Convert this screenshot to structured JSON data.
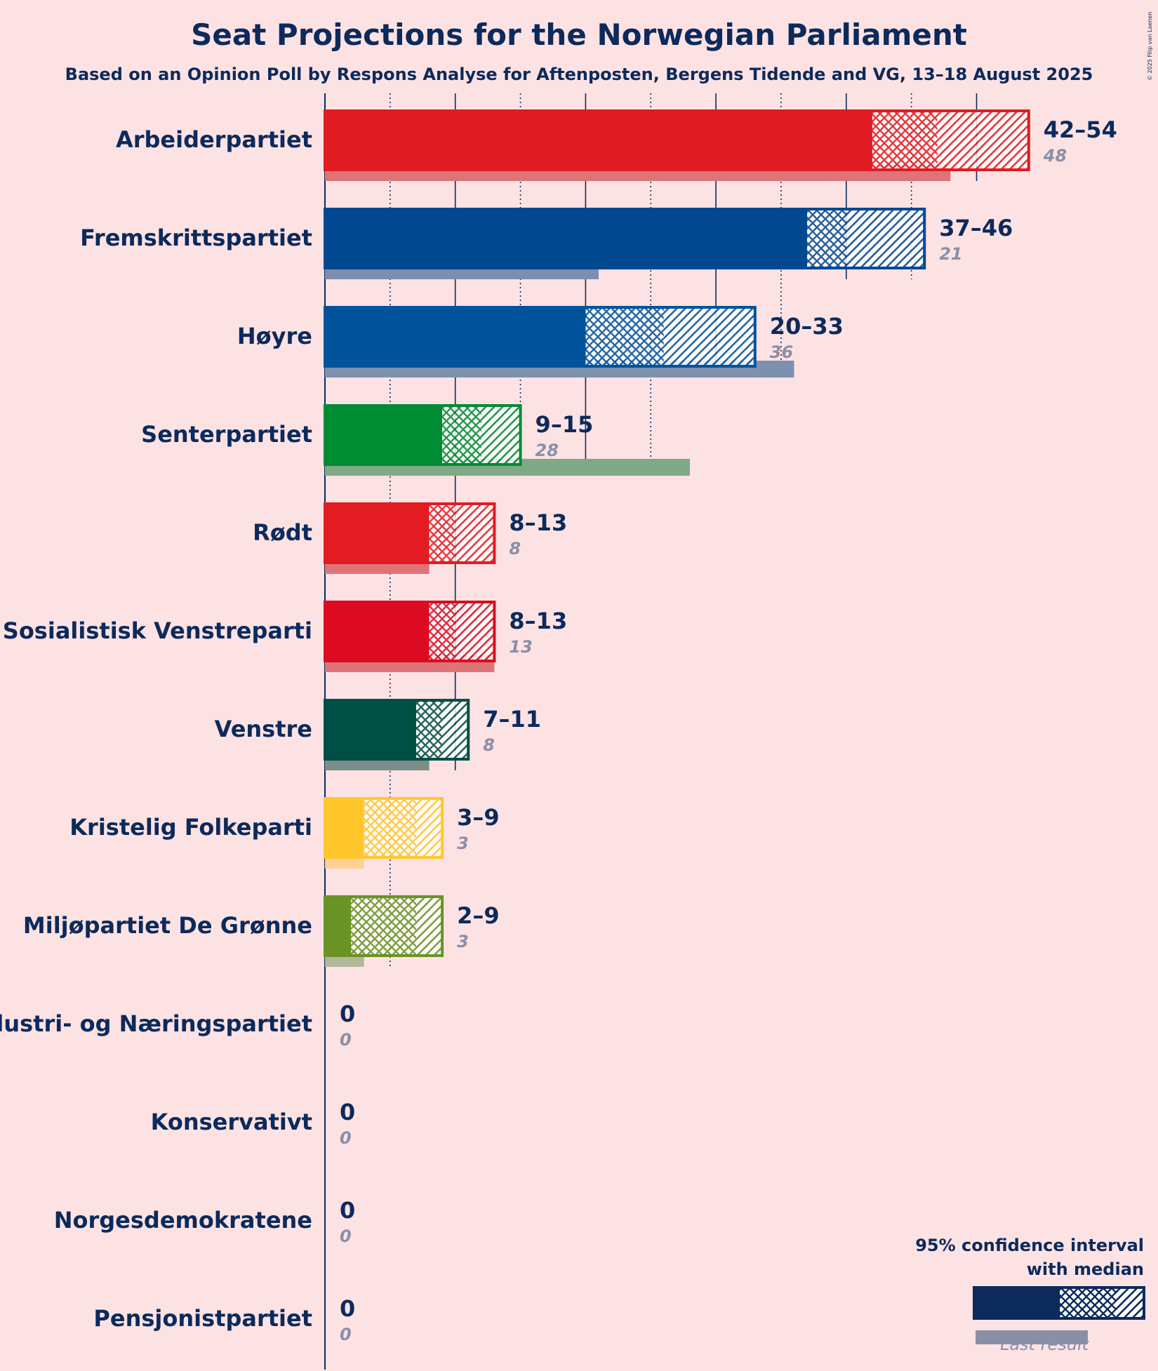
{
  "title": "Seat Projections for the Norwegian Parliament",
  "subtitle": "Based on an Opinion Poll by Respons Analyse for Aftenposten, Bergens Tidende and VG, 13–18 August 2025",
  "copyright": "© 2025 Filip van Laenen",
  "legend": {
    "ci_label_line1": "95% confidence interval",
    "ci_label_line2": "with median",
    "last_result_label": "Last result",
    "color": "#0c2a5b"
  },
  "chart_data": {
    "type": "bar",
    "orientation": "horizontal",
    "title": "Seat Projections for the Norwegian Parliament",
    "xlim": [
      0,
      60
    ],
    "gridlines_solid": [
      0,
      10,
      20,
      30,
      40,
      50
    ],
    "gridlines_dotted": [
      5,
      15,
      25,
      35,
      45
    ],
    "parties": [
      {
        "name": "Arbeiderpartiet",
        "low": 42,
        "median": 47,
        "high": 54,
        "range_label": "42–54",
        "last": 48,
        "last_label": "48",
        "color": "#e01b22",
        "last_color": "#de7378"
      },
      {
        "name": "Fremskrittspartiet",
        "low": 37,
        "median": 40,
        "high": 46,
        "range_label": "37–46",
        "last": 21,
        "last_label": "21",
        "color": "#024891",
        "last_color": "#7d8eb0"
      },
      {
        "name": "Høyre",
        "low": 20,
        "median": 26,
        "high": 33,
        "range_label": "20–33",
        "last": 36,
        "last_label": "36",
        "color": "#00539b",
        "last_color": "#7d91ae"
      },
      {
        "name": "Senterpartiet",
        "low": 9,
        "median": 12,
        "high": 15,
        "range_label": "9–15",
        "last": 28,
        "last_label": "28",
        "color": "#008c33",
        "last_color": "#80a987"
      },
      {
        "name": "Rødt",
        "low": 8,
        "median": 10,
        "high": 13,
        "range_label": "8–13",
        "last": 8,
        "last_label": "8",
        "color": "#e31b23",
        "last_color": "#de7378"
      },
      {
        "name": "Sosialistisk Venstreparti",
        "low": 8,
        "median": 10,
        "high": 13,
        "range_label": "8–13",
        "last": 13,
        "last_label": "13",
        "color": "#dd0b22",
        "last_color": "#de7378"
      },
      {
        "name": "Venstre",
        "low": 7,
        "median": 9,
        "high": 11,
        "range_label": "7–11",
        "last": 8,
        "last_label": "8",
        "color": "#004f45",
        "last_color": "#7a8f8a"
      },
      {
        "name": "Kristelig Folkeparti",
        "low": 3,
        "median": 7,
        "high": 9,
        "range_label": "3–9",
        "last": 3,
        "last_label": "3",
        "color": "#ffc72c",
        "last_color": "#fcd193"
      },
      {
        "name": "Miljøpartiet De Grønne",
        "low": 2,
        "median": 7,
        "high": 9,
        "range_label": "2–9",
        "last": 3,
        "last_label": "3",
        "color": "#6a9325",
        "last_color": "#b3b89a"
      },
      {
        "name": "Industri- og Næringspartiet",
        "low": 0,
        "median": 0,
        "high": 0,
        "range_label": "0",
        "last": 0,
        "last_label": "0",
        "color": "#1f3b73",
        "last_color": "#8a8fa8"
      },
      {
        "name": "Konservativt",
        "low": 0,
        "median": 0,
        "high": 0,
        "range_label": "0",
        "last": 0,
        "last_label": "0",
        "color": "#1f3b73",
        "last_color": "#8a8fa8"
      },
      {
        "name": "Norgesdemokratene",
        "low": 0,
        "median": 0,
        "high": 0,
        "range_label": "0",
        "last": 0,
        "last_label": "0",
        "color": "#1f3b73",
        "last_color": "#8a8fa8"
      },
      {
        "name": "Pensjonistpartiet",
        "low": 0,
        "median": 0,
        "high": 0,
        "range_label": "0",
        "last": 0,
        "last_label": "0",
        "color": "#1f3b73",
        "last_color": "#8a8fa8"
      }
    ]
  }
}
